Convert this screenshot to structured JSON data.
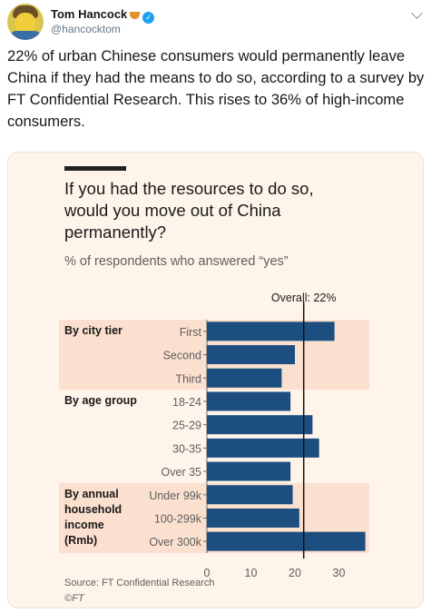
{
  "tweet": {
    "name": "Tom Hancock",
    "handle": "@hancocktom",
    "text": "22% of urban Chinese consumers would permanently leave China if they had the means to do so, according to a survey by FT Confidential Research. This rises to 36% of high-income consumers.",
    "icons": [
      "avatar",
      "pudding-emoji-icon",
      "verified-icon",
      "chevron-down-icon"
    ]
  },
  "chart_data": {
    "type": "bar",
    "orientation": "horizontal",
    "title": "If you had the resources to do so, would you move out of China permanently?",
    "subtitle": "% of respondents who answered “yes”",
    "reference_line": {
      "label": "Overall: 22%",
      "value": 22
    },
    "groups": [
      {
        "label": "By city tier",
        "shaded": true,
        "categories": [
          "First",
          "Second",
          "Third"
        ],
        "values": [
          29,
          20,
          17
        ]
      },
      {
        "label": "By age group",
        "shaded": false,
        "categories": [
          "18-24",
          "25-29",
          "30-35",
          "Over 35"
        ],
        "values": [
          19,
          24,
          25.5,
          19
        ]
      },
      {
        "label": "By annual household income (Rmb)",
        "shaded": true,
        "categories": [
          "Under 99k",
          "100-299k",
          "Over 300k"
        ],
        "values": [
          19.5,
          21,
          36
        ]
      }
    ],
    "xlim": [
      0,
      40
    ],
    "xticks": [
      "0",
      "10",
      "20",
      "30"
    ],
    "source": "Source: FT Confidential Research",
    "copyright": "©FT",
    "colors": {
      "bar": "#1c4e80",
      "shade": "#fbe0cf",
      "background": "#fff4ea",
      "reference": "#111111"
    }
  }
}
